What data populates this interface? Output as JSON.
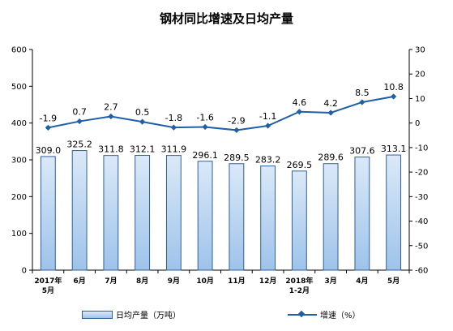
{
  "chart_data": {
    "type": "bar+line",
    "title": "钢材同比增速及日均产量",
    "categories": [
      [
        "2017年",
        "5月"
      ],
      [
        "6月"
      ],
      [
        "7月"
      ],
      [
        "8月"
      ],
      [
        "9月"
      ],
      [
        "10月"
      ],
      [
        "11月"
      ],
      [
        "12月"
      ],
      [
        "2018年",
        "1-2月"
      ],
      [
        "3月"
      ],
      [
        "4月"
      ],
      [
        "5月"
      ]
    ],
    "series": [
      {
        "name": "日均产量（万吨）",
        "type": "bar",
        "axis": "left",
        "values": [
          309.0,
          325.2,
          311.8,
          312.1,
          311.9,
          296.1,
          289.5,
          283.2,
          269.5,
          289.6,
          307.6,
          313.1
        ],
        "labels": [
          "309.0",
          "325.2",
          "311.8",
          "312.1",
          "311.9",
          "296.1",
          "289.5",
          "283.2",
          "269.5",
          "289.6",
          "307.6",
          "313.1"
        ]
      },
      {
        "name": "增速（%）",
        "type": "line",
        "axis": "right",
        "values": [
          -1.9,
          0.7,
          2.7,
          0.5,
          -1.8,
          -1.6,
          -2.9,
          -1.1,
          4.6,
          4.2,
          8.5,
          10.8
        ],
        "labels": [
          "-1.9",
          "0.7",
          "2.7",
          "0.5",
          "-1.8",
          "-1.6",
          "-2.9",
          "-1.1",
          "4.6",
          "4.2",
          "8.5",
          "10.8"
        ]
      }
    ],
    "left_axis": {
      "min": 0,
      "max": 600,
      "ticks": [
        "0",
        "100",
        "200",
        "300",
        "400",
        "500",
        "600"
      ]
    },
    "right_axis": {
      "min": -60,
      "max": 30,
      "ticks": [
        "-60",
        "-50",
        "-40",
        "-30",
        "-20",
        "-10",
        "0",
        "10",
        "20",
        "30"
      ]
    },
    "grid": false,
    "legend_position": "bottom",
    "colors": {
      "bar_fill_top": "#dbe9f8",
      "bar_fill_bottom": "#9ec3ea",
      "bar_stroke": "#2f5f9a",
      "line": "#1f5fa8"
    }
  }
}
